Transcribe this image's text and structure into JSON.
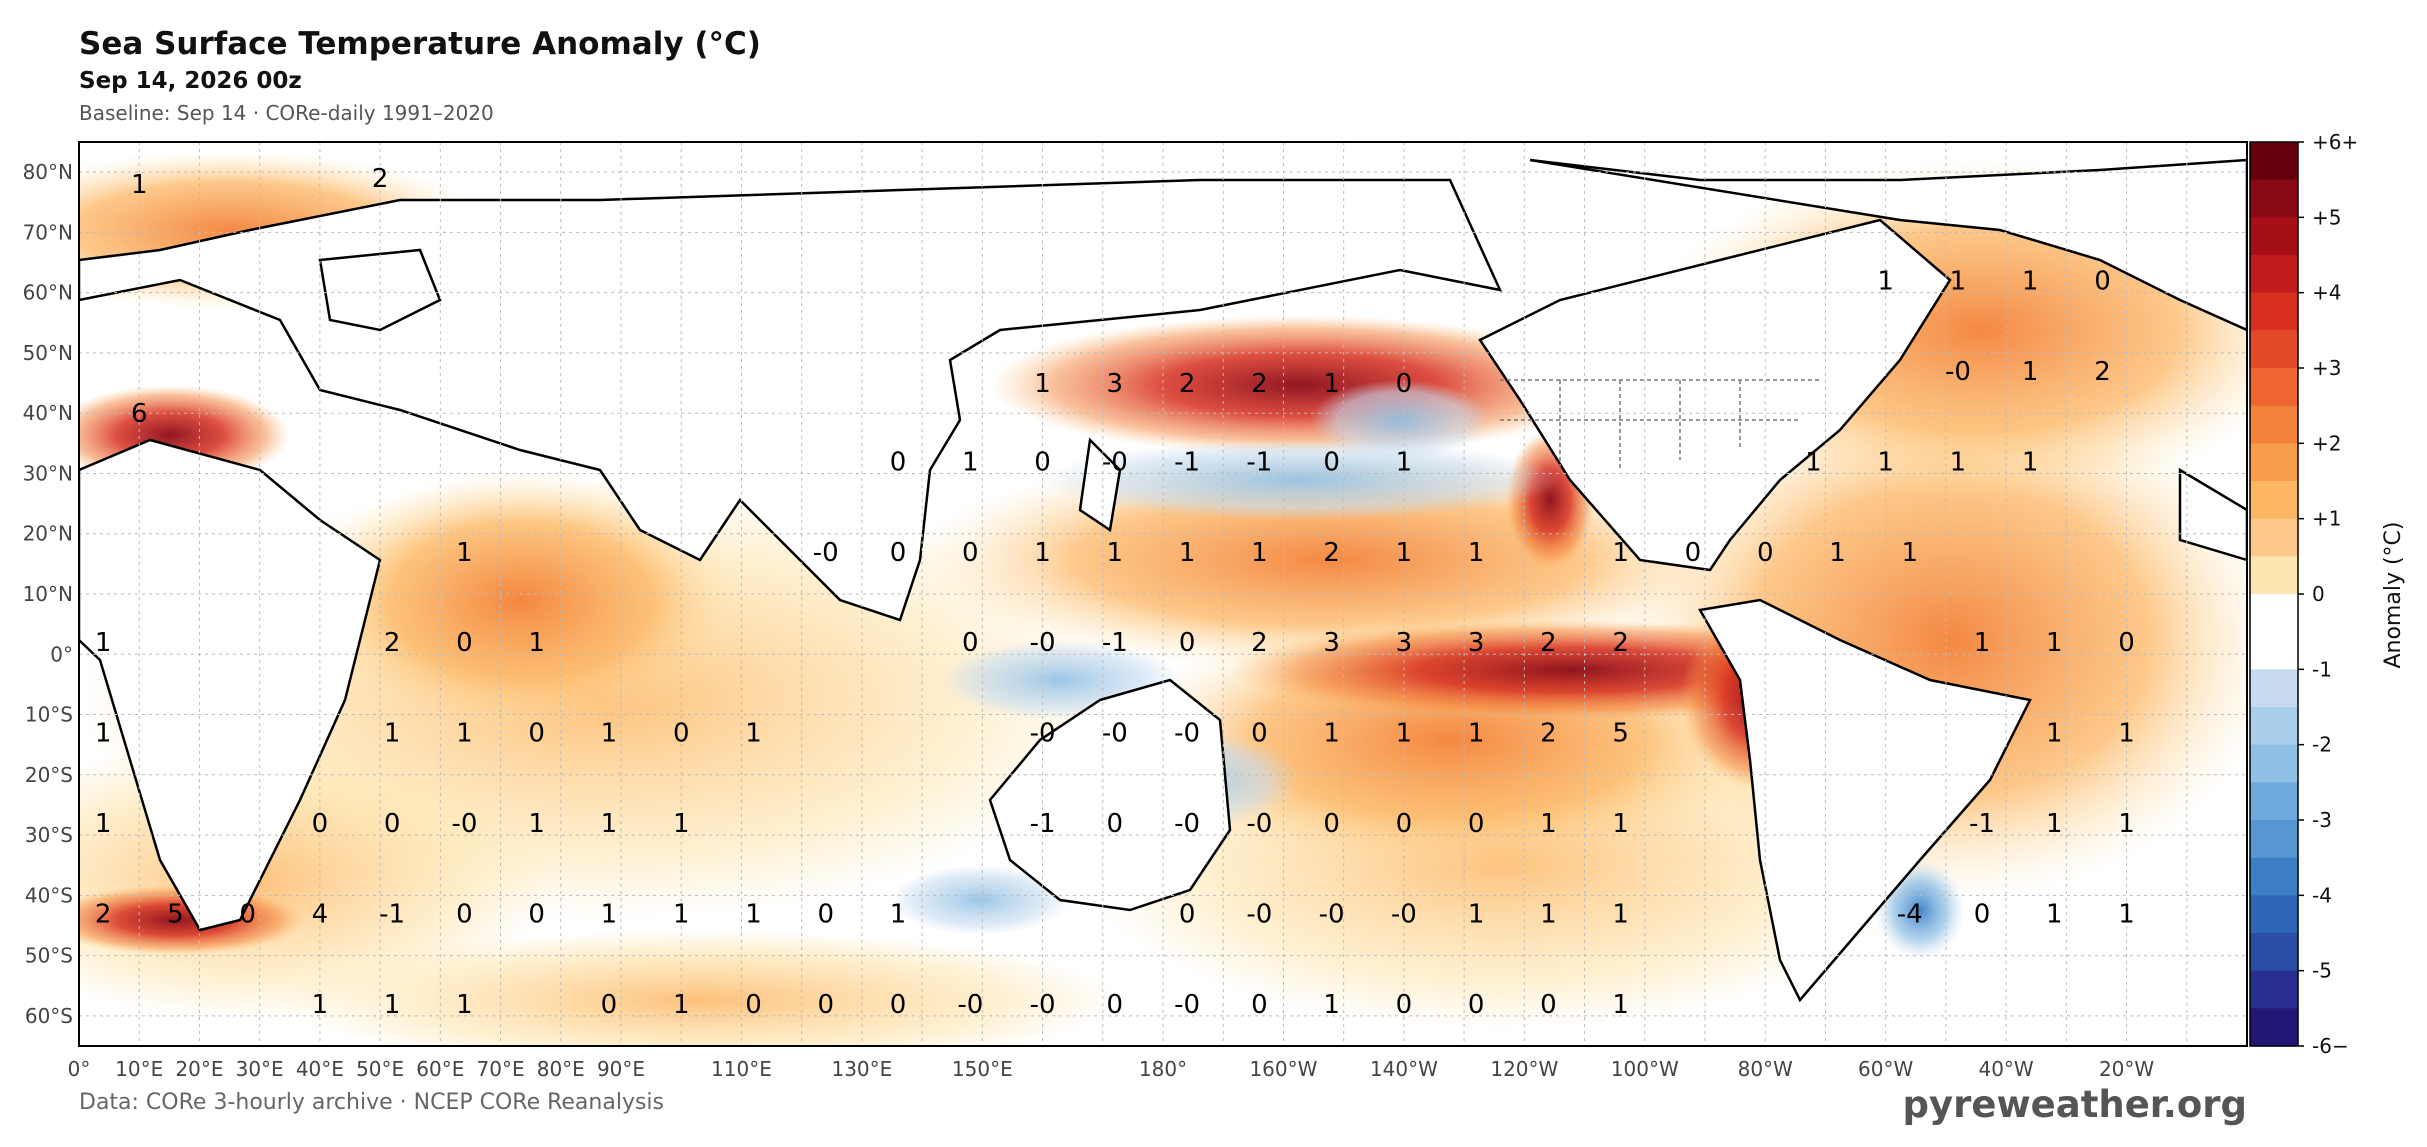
{
  "header": {
    "title": "Sea Surface Temperature Anomaly (°C)",
    "subtitle": "Sep 14, 2026 00z",
    "baseline": "Baseline: Sep 14 · CORe-daily 1991–2020"
  },
  "footer": {
    "source": "Data: CORe 3-hourly archive  ·  NCEP CORe Reanalysis",
    "brand": "pyreweather.org"
  },
  "axes": {
    "lat_labels": [
      "80°N",
      "70°N",
      "60°N",
      "50°N",
      "40°N",
      "30°N",
      "20°N",
      "10°N",
      "0°",
      "10°S",
      "20°S",
      "30°S",
      "40°S",
      "50°S",
      "60°S"
    ],
    "lon_labels": [
      "0°",
      "10°E",
      "20°E",
      "30°E",
      "40°E",
      "50°E",
      "60°E",
      "70°E",
      "80°E",
      "90°E",
      "110°E",
      "130°E",
      "150°E",
      "180°",
      "160°W",
      "140°W",
      "120°W",
      "100°W",
      "80°W",
      "60°W",
      "40°W",
      "20°W"
    ]
  },
  "colorbar": {
    "label": "Anomaly  (°C)",
    "tick_labels": [
      "+6+",
      "+5",
      "+4",
      "+3",
      "+2",
      "+1",
      "0",
      "-1",
      "-2",
      "-3",
      "-4",
      "-5",
      "-6−"
    ],
    "colors": [
      "#67000d",
      "#8b0a17",
      "#a50f15",
      "#c11b1e",
      "#d7301f",
      "#e34a2a",
      "#ef6530",
      "#f3823a",
      "#f89e4b",
      "#fcb663",
      "#fdc98a",
      "#fee6b0",
      "#ffffff",
      "#ffffff",
      "#c6dbef",
      "#aacfea",
      "#8fc0e5",
      "#70aadd",
      "#5596d3",
      "#3d7fc7",
      "#2f65b6",
      "#2a4ea3",
      "#262f8f",
      "#231776"
    ]
  },
  "sample_values": [
    {
      "lon": 10,
      "lat": 78,
      "v": "1"
    },
    {
      "lon": 50,
      "lat": 79,
      "v": "2"
    },
    {
      "lon": 10,
      "lat": 40,
      "v": "6"
    },
    {
      "lon": 160,
      "lat": 45,
      "v": "1"
    },
    {
      "lon": 172,
      "lat": 45,
      "v": "3"
    },
    {
      "lon": 184,
      "lat": 45,
      "v": "2"
    },
    {
      "lon": 196,
      "lat": 45,
      "v": "2"
    },
    {
      "lon": 208,
      "lat": 45,
      "v": "1"
    },
    {
      "lon": 220,
      "lat": 45,
      "v": "0"
    },
    {
      "lon": 300,
      "lat": 62,
      "v": "1"
    },
    {
      "lon": 312,
      "lat": 62,
      "v": "1"
    },
    {
      "lon": 324,
      "lat": 62,
      "v": "1"
    },
    {
      "lon": 336,
      "lat": 62,
      "v": "0"
    },
    {
      "lon": 312,
      "lat": 47,
      "v": "-0"
    },
    {
      "lon": 324,
      "lat": 47,
      "v": "1"
    },
    {
      "lon": 336,
      "lat": 47,
      "v": "2"
    },
    {
      "lon": 136,
      "lat": 32,
      "v": "0"
    },
    {
      "lon": 148,
      "lat": 32,
      "v": "1"
    },
    {
      "lon": 160,
      "lat": 32,
      "v": "0"
    },
    {
      "lon": 172,
      "lat": 32,
      "v": "-0"
    },
    {
      "lon": 184,
      "lat": 32,
      "v": "-1"
    },
    {
      "lon": 196,
      "lat": 32,
      "v": "-1"
    },
    {
      "lon": 208,
      "lat": 32,
      "v": "0"
    },
    {
      "lon": 220,
      "lat": 32,
      "v": "1"
    },
    {
      "lon": 288,
      "lat": 32,
      "v": "1"
    },
    {
      "lon": 300,
      "lat": 32,
      "v": "1"
    },
    {
      "lon": 312,
      "lat": 32,
      "v": "1"
    },
    {
      "lon": 324,
      "lat": 32,
      "v": "1"
    },
    {
      "lon": 64,
      "lat": 17,
      "v": "1"
    },
    {
      "lon": 124,
      "lat": 17,
      "v": "-0"
    },
    {
      "lon": 136,
      "lat": 17,
      "v": "0"
    },
    {
      "lon": 148,
      "lat": 17,
      "v": "0"
    },
    {
      "lon": 160,
      "lat": 17,
      "v": "1"
    },
    {
      "lon": 172,
      "lat": 17,
      "v": "1"
    },
    {
      "lon": 184,
      "lat": 17,
      "v": "1"
    },
    {
      "lon": 196,
      "lat": 17,
      "v": "1"
    },
    {
      "lon": 208,
      "lat": 17,
      "v": "2"
    },
    {
      "lon": 220,
      "lat": 17,
      "v": "1"
    },
    {
      "lon": 232,
      "lat": 17,
      "v": "1"
    },
    {
      "lon": 256,
      "lat": 17,
      "v": "1"
    },
    {
      "lon": 268,
      "lat": 17,
      "v": "0"
    },
    {
      "lon": 280,
      "lat": 17,
      "v": "0"
    },
    {
      "lon": 292,
      "lat": 17,
      "v": "1"
    },
    {
      "lon": 304,
      "lat": 17,
      "v": "1"
    },
    {
      "lon": 4,
      "lat": 2,
      "v": "1"
    },
    {
      "lon": 52,
      "lat": 2,
      "v": "2"
    },
    {
      "lon": 64,
      "lat": 2,
      "v": "0"
    },
    {
      "lon": 76,
      "lat": 2,
      "v": "1"
    },
    {
      "lon": 148,
      "lat": 2,
      "v": "0"
    },
    {
      "lon": 160,
      "lat": 2,
      "v": "-0"
    },
    {
      "lon": 172,
      "lat": 2,
      "v": "-1"
    },
    {
      "lon": 184,
      "lat": 2,
      "v": "0"
    },
    {
      "lon": 196,
      "lat": 2,
      "v": "2"
    },
    {
      "lon": 208,
      "lat": 2,
      "v": "3"
    },
    {
      "lon": 220,
      "lat": 2,
      "v": "3"
    },
    {
      "lon": 232,
      "lat": 2,
      "v": "3"
    },
    {
      "lon": 244,
      "lat": 2,
      "v": "2"
    },
    {
      "lon": 256,
      "lat": 2,
      "v": "2"
    },
    {
      "lon": 316,
      "lat": 2,
      "v": "1"
    },
    {
      "lon": 328,
      "lat": 2,
      "v": "1"
    },
    {
      "lon": 340,
      "lat": 2,
      "v": "0"
    },
    {
      "lon": 4,
      "lat": -13,
      "v": "1"
    },
    {
      "lon": 52,
      "lat": -13,
      "v": "1"
    },
    {
      "lon": 64,
      "lat": -13,
      "v": "1"
    },
    {
      "lon": 76,
      "lat": -13,
      "v": "0"
    },
    {
      "lon": 88,
      "lat": -13,
      "v": "1"
    },
    {
      "lon": 100,
      "lat": -13,
      "v": "0"
    },
    {
      "lon": 112,
      "lat": -13,
      "v": "1"
    },
    {
      "lon": 160,
      "lat": -13,
      "v": "-0"
    },
    {
      "lon": 172,
      "lat": -13,
      "v": "-0"
    },
    {
      "lon": 184,
      "lat": -13,
      "v": "-0"
    },
    {
      "lon": 196,
      "lat": -13,
      "v": "0"
    },
    {
      "lon": 208,
      "lat": -13,
      "v": "1"
    },
    {
      "lon": 220,
      "lat": -13,
      "v": "1"
    },
    {
      "lon": 232,
      "lat": -13,
      "v": "1"
    },
    {
      "lon": 244,
      "lat": -13,
      "v": "2"
    },
    {
      "lon": 256,
      "lat": -13,
      "v": "5"
    },
    {
      "lon": 328,
      "lat": -13,
      "v": "1"
    },
    {
      "lon": 340,
      "lat": -13,
      "v": "1"
    },
    {
      "lon": 4,
      "lat": -28,
      "v": "1"
    },
    {
      "lon": 40,
      "lat": -28,
      "v": "0"
    },
    {
      "lon": 52,
      "lat": -28,
      "v": "0"
    },
    {
      "lon": 64,
      "lat": -28,
      "v": "-0"
    },
    {
      "lon": 76,
      "lat": -28,
      "v": "1"
    },
    {
      "lon": 88,
      "lat": -28,
      "v": "1"
    },
    {
      "lon": 100,
      "lat": -28,
      "v": "1"
    },
    {
      "lon": 160,
      "lat": -28,
      "v": "-1"
    },
    {
      "lon": 172,
      "lat": -28,
      "v": "0"
    },
    {
      "lon": 184,
      "lat": -28,
      "v": "-0"
    },
    {
      "lon": 196,
      "lat": -28,
      "v": "-0"
    },
    {
      "lon": 208,
      "lat": -28,
      "v": "0"
    },
    {
      "lon": 220,
      "lat": -28,
      "v": "0"
    },
    {
      "lon": 232,
      "lat": -28,
      "v": "0"
    },
    {
      "lon": 244,
      "lat": -28,
      "v": "1"
    },
    {
      "lon": 256,
      "lat": -28,
      "v": "1"
    },
    {
      "lon": 316,
      "lat": -28,
      "v": "-1"
    },
    {
      "lon": 328,
      "lat": -28,
      "v": "1"
    },
    {
      "lon": 340,
      "lat": -28,
      "v": "1"
    },
    {
      "lon": 4,
      "lat": -43,
      "v": "2"
    },
    {
      "lon": 16,
      "lat": -43,
      "v": "5"
    },
    {
      "lon": 28,
      "lat": -43,
      "v": "0"
    },
    {
      "lon": 40,
      "lat": -43,
      "v": "4"
    },
    {
      "lon": 52,
      "lat": -43,
      "v": "-1"
    },
    {
      "lon": 64,
      "lat": -43,
      "v": "0"
    },
    {
      "lon": 76,
      "lat": -43,
      "v": "0"
    },
    {
      "lon": 88,
      "lat": -43,
      "v": "1"
    },
    {
      "lon": 100,
      "lat": -43,
      "v": "1"
    },
    {
      "lon": 112,
      "lat": -43,
      "v": "1"
    },
    {
      "lon": 124,
      "lat": -43,
      "v": "0"
    },
    {
      "lon": 136,
      "lat": -43,
      "v": "1"
    },
    {
      "lon": 184,
      "lat": -43,
      "v": "0"
    },
    {
      "lon": 196,
      "lat": -43,
      "v": "-0"
    },
    {
      "lon": 208,
      "lat": -43,
      "v": "-0"
    },
    {
      "lon": 220,
      "lat": -43,
      "v": "-0"
    },
    {
      "lon": 232,
      "lat": -43,
      "v": "1"
    },
    {
      "lon": 244,
      "lat": -43,
      "v": "1"
    },
    {
      "lon": 256,
      "lat": -43,
      "v": "1"
    },
    {
      "lon": 304,
      "lat": -43,
      "v": "-4"
    },
    {
      "lon": 316,
      "lat": -43,
      "v": "0"
    },
    {
      "lon": 328,
      "lat": -43,
      "v": "1"
    },
    {
      "lon": 340,
      "lat": -43,
      "v": "1"
    },
    {
      "lon": 40,
      "lat": -58,
      "v": "1"
    },
    {
      "lon": 52,
      "lat": -58,
      "v": "1"
    },
    {
      "lon": 64,
      "lat": -58,
      "v": "1"
    },
    {
      "lon": 88,
      "lat": -58,
      "v": "0"
    },
    {
      "lon": 100,
      "lat": -58,
      "v": "1"
    },
    {
      "lon": 112,
      "lat": -58,
      "v": "0"
    },
    {
      "lon": 124,
      "lat": -58,
      "v": "0"
    },
    {
      "lon": 136,
      "lat": -58,
      "v": "0"
    },
    {
      "lon": 148,
      "lat": -58,
      "v": "-0"
    },
    {
      "lon": 160,
      "lat": -58,
      "v": "-0"
    },
    {
      "lon": 172,
      "lat": -58,
      "v": "0"
    },
    {
      "lon": 184,
      "lat": -58,
      "v": "-0"
    },
    {
      "lon": 196,
      "lat": -58,
      "v": "0"
    },
    {
      "lon": 208,
      "lat": -58,
      "v": "1"
    },
    {
      "lon": 220,
      "lat": -58,
      "v": "0"
    },
    {
      "lon": 232,
      "lat": -58,
      "v": "0"
    },
    {
      "lon": 244,
      "lat": -58,
      "v": "0"
    },
    {
      "lon": 256,
      "lat": -58,
      "v": "1"
    }
  ]
}
